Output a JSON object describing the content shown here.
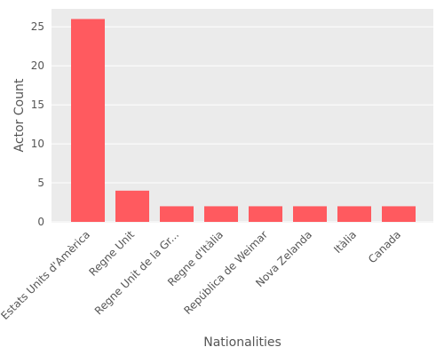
{
  "chart_data": {
    "type": "bar",
    "title": "",
    "xlabel": "Nationalities",
    "ylabel": "Actor Count",
    "categories": [
      "Estats Units d'Amèrica",
      "Regne Unit",
      "Regne Unit de la Gr...",
      "Regne d'Itàlia",
      "República de Weimar",
      "Nova Zelanda",
      "Itàlia",
      "Canada"
    ],
    "values": [
      26,
      4,
      2,
      2,
      2,
      2,
      2,
      2
    ],
    "ylim": [
      0,
      27.3
    ],
    "yticks": [
      0,
      5,
      10,
      15,
      20,
      25
    ],
    "grid": true,
    "bar_color": "#ff5a5f",
    "plot_background": "#ebebeb",
    "grid_color": "#ffffff"
  }
}
